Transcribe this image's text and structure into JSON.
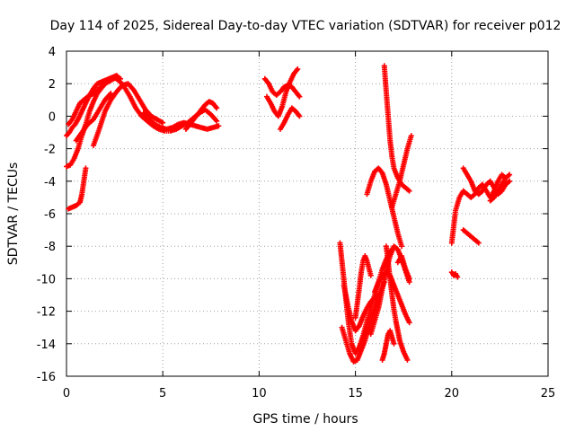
{
  "chart_data": {
    "type": "scatter",
    "title": "Day 114 of 2025, Sidereal Day-to-day VTEC variation (SDTVAR) for receiver p012",
    "xlabel": "GPS time / hours",
    "ylabel": "SDTVAR / TECUs",
    "xlim": [
      0,
      25
    ],
    "ylim": [
      -16,
      4
    ],
    "xticks": [
      "0",
      "5",
      "10",
      "15",
      "20",
      "25"
    ],
    "yticks": [
      "-16",
      "-14",
      "-12",
      "-10",
      "-8",
      "-6",
      "-4",
      "-2",
      "0",
      "2",
      "4"
    ],
    "grid": true,
    "marker": "plus",
    "color": "#ff0000",
    "series": [
      {
        "x": [
          0.0,
          0.15,
          0.3,
          0.45,
          0.6,
          0.8,
          1.0,
          1.2,
          1.4,
          1.6,
          1.8,
          2.0,
          2.2,
          2.4,
          2.6,
          2.8,
          3.0,
          3.3,
          3.6,
          3.9,
          4.2,
          4.5,
          4.8,
          5.1,
          5.4,
          5.7,
          6.0,
          6.3,
          6.6,
          6.9,
          7.2,
          7.5,
          7.8
        ],
        "y": [
          -1.2,
          -1.0,
          -0.7,
          -0.5,
          -0.2,
          0.3,
          0.8,
          1.3,
          1.7,
          2.0,
          2.1,
          2.2,
          2.3,
          2.4,
          2.3,
          2.1,
          1.8,
          1.2,
          0.5,
          0.0,
          -0.3,
          -0.6,
          -0.8,
          -0.9,
          -0.9,
          -0.8,
          -0.6,
          -0.4,
          -0.1,
          0.2,
          0.4,
          0.1,
          -0.3
        ]
      },
      {
        "x": [
          0.0,
          0.2,
          0.4,
          0.6,
          0.8,
          1.0,
          1.2,
          1.4,
          1.6,
          1.8,
          2.0,
          2.2,
          2.4,
          2.6,
          2.8
        ],
        "y": [
          -3.1,
          -3.0,
          -2.6,
          -2.0,
          -1.2,
          -0.5,
          0.3,
          0.9,
          1.4,
          1.7,
          2.0,
          2.2,
          2.4,
          2.5,
          2.3
        ]
      },
      {
        "x": [
          0.1,
          0.3,
          0.5,
          0.7,
          0.9,
          1.1,
          1.4,
          1.7,
          2.0,
          2.3,
          2.6
        ],
        "y": [
          -0.5,
          -0.2,
          0.3,
          0.8,
          1.0,
          1.2,
          1.4,
          1.7,
          2.0,
          2.2,
          2.4
        ]
      },
      {
        "x": [
          0.1,
          0.3,
          0.5,
          0.7,
          0.8,
          0.9,
          1.0
        ],
        "y": [
          -5.7,
          -5.6,
          -5.5,
          -5.3,
          -4.8,
          -4.0,
          -3.2
        ]
      },
      {
        "x": [
          0.5,
          0.8,
          1.1,
          1.4,
          1.7,
          2.0,
          2.3
        ],
        "y": [
          -1.5,
          -1.0,
          -0.5,
          -0.2,
          0.4,
          1.0,
          1.4
        ]
      },
      {
        "x": [
          1.4,
          1.7,
          2.0,
          2.3,
          2.6,
          2.9,
          3.2,
          3.5,
          3.8,
          4.1,
          4.4,
          4.7,
          5.0
        ],
        "y": [
          -1.8,
          -0.8,
          0.3,
          1.0,
          1.5,
          1.9,
          2.0,
          1.6,
          1.0,
          0.4,
          0.0,
          -0.2,
          -0.4
        ]
      },
      {
        "x": [
          4.0,
          4.3,
          4.6,
          4.9,
          5.2,
          5.5,
          5.8,
          6.1,
          6.4,
          6.7,
          7.0,
          7.3,
          7.6,
          7.9
        ],
        "y": [
          0.2,
          -0.2,
          -0.5,
          -0.7,
          -0.8,
          -0.7,
          -0.5,
          -0.4,
          -0.5,
          -0.6,
          -0.7,
          -0.8,
          -0.7,
          -0.6
        ]
      },
      {
        "x": [
          6.2,
          6.4,
          6.6,
          6.8,
          7.0,
          7.2,
          7.4,
          7.6,
          7.8
        ],
        "y": [
          -0.8,
          -0.5,
          -0.2,
          0.1,
          0.4,
          0.7,
          0.9,
          0.8,
          0.5
        ]
      },
      {
        "x": [
          10.3,
          10.5,
          10.7,
          10.9,
          11.1,
          11.3,
          11.5,
          11.7,
          11.9,
          12.1
        ],
        "y": [
          2.3,
          2.0,
          1.5,
          1.3,
          1.5,
          1.8,
          1.9,
          1.8,
          1.5,
          1.2
        ]
      },
      {
        "x": [
          10.4,
          10.6,
          10.8,
          11.0,
          11.2,
          11.4,
          11.6,
          11.8,
          12.0
        ],
        "y": [
          1.2,
          0.8,
          0.3,
          0.0,
          0.6,
          1.5,
          2.1,
          2.6,
          2.9
        ]
      },
      {
        "x": [
          11.1,
          11.3,
          11.5,
          11.7,
          11.9,
          12.1
        ],
        "y": [
          -0.8,
          -0.4,
          0.1,
          0.5,
          0.3,
          0.0
        ]
      },
      {
        "x": [
          14.2,
          14.35,
          14.5,
          14.65,
          14.8,
          15.0,
          15.2,
          15.4,
          15.6,
          15.8,
          16.0,
          16.2,
          16.4,
          16.6,
          16.8,
          17.0
        ],
        "y": [
          -7.8,
          -9.5,
          -11.2,
          -12.8,
          -14.0,
          -14.6,
          -14.2,
          -13.5,
          -12.6,
          -11.8,
          -11.0,
          -10.2,
          -9.4,
          -8.8,
          -8.3,
          -8.1
        ]
      },
      {
        "x": [
          14.3,
          14.5,
          14.7,
          14.9,
          15.1,
          15.3,
          15.5,
          15.7,
          15.9,
          16.1,
          16.3,
          16.5
        ],
        "y": [
          -13.0,
          -13.8,
          -14.6,
          -15.1,
          -15.0,
          -14.4,
          -13.8,
          -13.0,
          -12.2,
          -11.5,
          -10.8,
          -10.2
        ]
      },
      {
        "x": [
          14.4,
          14.6,
          14.8,
          15.0,
          15.2,
          15.4,
          15.6,
          15.8,
          16.0,
          16.2
        ],
        "y": [
          -10.4,
          -11.6,
          -12.6,
          -13.2,
          -12.9,
          -12.3,
          -11.8,
          -11.4,
          -11.2,
          -11.0
        ]
      },
      {
        "x": [
          15.0,
          15.1,
          15.2,
          15.3,
          15.4,
          15.5,
          15.6,
          15.8
        ],
        "y": [
          -12.4,
          -11.5,
          -10.6,
          -9.6,
          -8.9,
          -8.6,
          -8.9,
          -9.8
        ]
      },
      {
        "x": [
          15.8,
          16.0,
          16.2,
          16.4,
          16.6,
          16.8,
          17.0,
          17.2,
          17.4,
          17.6,
          17.8
        ],
        "y": [
          -13.4,
          -12.6,
          -11.8,
          -10.6,
          -9.5,
          -8.6,
          -8.0,
          -8.2,
          -8.8,
          -9.5,
          -10.2
        ]
      },
      {
        "x": [
          16.0,
          16.2,
          16.4,
          16.6,
          16.8,
          17.0,
          17.2,
          17.4,
          17.6,
          17.8
        ],
        "y": [
          -10.8,
          -10.2,
          -9.8,
          -9.6,
          -9.8,
          -10.4,
          -11.0,
          -11.6,
          -12.2,
          -12.7
        ]
      },
      {
        "x": [
          16.6,
          16.7,
          16.8,
          16.9,
          17.0,
          17.1,
          17.2,
          17.3,
          17.5,
          17.7
        ],
        "y": [
          -8.0,
          -9.0,
          -10.0,
          -11.0,
          -11.9,
          -12.6,
          -13.2,
          -13.8,
          -14.5,
          -15.0
        ]
      },
      {
        "x": [
          16.4,
          16.5,
          16.6,
          16.7,
          16.8,
          16.9,
          17.0
        ],
        "y": [
          -15.0,
          -14.6,
          -14.0,
          -13.4,
          -13.2,
          -13.6,
          -14.0
        ]
      },
      {
        "x": [
          16.5,
          16.6,
          16.7,
          16.8,
          16.9,
          17.0,
          17.2,
          17.4,
          17.6,
          17.8
        ],
        "y": [
          3.1,
          1.5,
          0.0,
          -1.5,
          -2.5,
          -3.2,
          -3.8,
          -4.2,
          -4.4,
          -4.6
        ]
      },
      {
        "x": [
          16.9,
          17.1,
          17.3,
          17.5,
          17.7,
          17.9
        ],
        "y": [
          -5.6,
          -4.8,
          -4.0,
          -3.0,
          -2.0,
          -1.2
        ]
      },
      {
        "x": [
          15.6,
          15.8,
          16.0,
          16.2,
          16.4,
          16.6,
          16.8,
          17.0,
          17.2,
          17.4
        ],
        "y": [
          -4.8,
          -4.0,
          -3.4,
          -3.2,
          -3.5,
          -4.2,
          -5.2,
          -6.2,
          -7.2,
          -8.0
        ]
      },
      {
        "x": [
          17.2,
          17.4,
          17.6,
          17.8
        ],
        "y": [
          -9.0,
          -8.6,
          -9.4,
          -10.0
        ]
      },
      {
        "x": [
          20.0,
          20.1,
          20.2,
          20.3
        ],
        "y": [
          -9.6,
          -9.8,
          -9.7,
          -9.9
        ]
      },
      {
        "x": [
          20.0,
          20.2,
          20.4,
          20.6,
          20.8,
          21.0,
          21.2,
          21.4,
          21.6,
          21.8,
          22.0,
          22.2,
          22.4,
          22.6,
          22.8
        ],
        "y": [
          -7.8,
          -5.8,
          -5.0,
          -4.6,
          -4.8,
          -5.0,
          -4.8,
          -4.4,
          -4.2,
          -4.6,
          -5.0,
          -4.6,
          -4.0,
          -3.6,
          -3.8
        ]
      },
      {
        "x": [
          20.6,
          20.8,
          21.0,
          21.2,
          21.4,
          21.6,
          21.8,
          22.0,
          22.2,
          22.4,
          22.6,
          22.8,
          23.0
        ],
        "y": [
          -3.2,
          -3.6,
          -4.0,
          -4.6,
          -4.8,
          -4.6,
          -4.2,
          -4.0,
          -4.4,
          -4.8,
          -4.6,
          -4.2,
          -4.0
        ]
      },
      {
        "x": [
          20.6,
          20.8,
          21.0,
          21.2,
          21.4
        ],
        "y": [
          -7.0,
          -7.2,
          -7.4,
          -7.6,
          -7.8
        ]
      },
      {
        "x": [
          22.0,
          22.2,
          22.4,
          22.6,
          22.8,
          23.0
        ],
        "y": [
          -5.2,
          -5.0,
          -4.6,
          -4.2,
          -3.8,
          -3.6
        ]
      }
    ]
  }
}
